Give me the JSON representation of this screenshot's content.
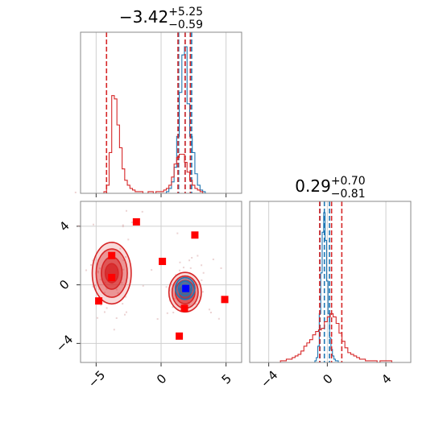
{
  "chart_data": [
    {
      "type": "histogram",
      "panel": "marginal-x",
      "title": {
        "value": "−3.42",
        "plus": "+5.25",
        "minus": "−0.59"
      },
      "xlim": [
        -6.2,
        6.2
      ],
      "series": [
        {
          "name": "",
          "color": "#1f77b4",
          "bin_centers": [
            0.5,
            0.7,
            0.9,
            1.1,
            1.3,
            1.5,
            1.7,
            1.9,
            2.1,
            2.3,
            2.5,
            2.7,
            2.9,
            3.1,
            3.3
          ],
          "counts": [
            0.01,
            0.03,
            0.07,
            0.16,
            0.35,
            0.62,
            0.85,
            0.9,
            0.55,
            0.35,
            0.25,
            0.12,
            0.05,
            0.02,
            0.01
          ],
          "quantile_lines": [
            1.35,
            1.85,
            2.35
          ]
        },
        {
          "name": "",
          "color": "#d62728",
          "bin_centers": [
            -4.3,
            -4.1,
            -3.9,
            -3.7,
            -3.5,
            -3.3,
            -3.1,
            -2.9,
            -2.7,
            -2.5,
            -2.3,
            -2.1,
            -1.9,
            -1.7,
            -1.5,
            -1.3,
            -1.1,
            -0.9,
            -0.7,
            -0.5,
            -0.3,
            -0.1,
            0.1,
            0.3,
            0.5,
            0.7,
            0.9,
            1.1,
            1.3,
            1.5,
            1.7,
            1.9,
            2.1,
            2.3,
            2.5,
            2.7,
            2.9,
            3.1
          ],
          "counts": [
            0.01,
            0.05,
            0.25,
            0.6,
            0.58,
            0.42,
            0.28,
            0.15,
            0.08,
            0.05,
            0.03,
            0.02,
            0.01,
            0.01,
            0.01,
            0.0,
            0.0,
            0.01,
            0.01,
            0.0,
            0.01,
            0.01,
            0.01,
            0.02,
            0.03,
            0.05,
            0.1,
            0.18,
            0.22,
            0.24,
            0.24,
            0.19,
            0.13,
            0.08,
            0.05,
            0.03,
            0.02,
            0.01
          ],
          "quantile_lines": [
            -4.2,
            1.3,
            1.85,
            2.25
          ]
        }
      ]
    },
    {
      "type": "scatter",
      "panel": "joint",
      "xlim": [
        -6.2,
        6.2
      ],
      "ylim": [
        -5.3,
        5.7
      ],
      "x_ticks": [
        "−5",
        "0",
        "5"
      ],
      "y_ticks": [
        "−4",
        "0",
        "4"
      ],
      "red_markers": [
        [
          -1.9,
          4.3
        ],
        [
          2.6,
          3.4
        ],
        [
          -3.8,
          2.0
        ],
        [
          0.1,
          1.6
        ],
        [
          -3.8,
          0.5
        ],
        [
          -4.8,
          -1.1
        ],
        [
          4.9,
          -1.0
        ],
        [
          1.8,
          -1.6
        ],
        [
          1.4,
          -3.5
        ]
      ],
      "blue_markers": [
        [
          1.9,
          -0.25
        ]
      ],
      "contour_groups": [
        {
          "color": "#d62728",
          "center": [
            -3.8,
            0.8
          ],
          "levels": [
            [
              1.5,
              2.1
            ],
            [
              1.2,
              1.65
            ],
            [
              0.8,
              1.1
            ],
            [
              0.5,
              0.65
            ]
          ]
        },
        {
          "color": "#d62728",
          "center": [
            1.85,
            -0.5
          ],
          "levels": [
            [
              1.25,
              1.35
            ],
            [
              1.0,
              1.1
            ],
            [
              0.75,
              0.8
            ],
            [
              0.45,
              0.45
            ]
          ]
        },
        {
          "color": "#1f77b4",
          "center": [
            1.85,
            -0.25
          ],
          "levels": [
            [
              0.75,
              0.75
            ],
            [
              0.5,
              0.5
            ],
            [
              0.25,
              0.25
            ]
          ]
        }
      ]
    },
    {
      "type": "histogram",
      "panel": "marginal-y",
      "title": {
        "value": "0.29",
        "plus": "+0.70",
        "minus": "−0.81"
      },
      "xlim": [
        -5.3,
        5.7
      ],
      "x_ticks": [
        "−4",
        "0",
        "4"
      ],
      "series": [
        {
          "name": "",
          "color": "#1f77b4",
          "bin_centers": [
            -0.8,
            -0.7,
            -0.6,
            -0.5,
            -0.4,
            -0.3,
            -0.2,
            -0.1,
            0.0,
            0.1,
            0.2,
            0.3,
            0.4,
            0.5,
            0.6,
            0.7
          ],
          "counts": [
            0.01,
            0.03,
            0.1,
            0.3,
            0.55,
            0.8,
            0.92,
            0.75,
            0.5,
            0.3,
            0.15,
            0.08,
            0.04,
            0.02,
            0.01,
            0.01
          ],
          "quantile_lines": [
            -0.5,
            -0.2,
            0.15
          ]
        },
        {
          "name": "",
          "color": "#d62728",
          "bin_centers": [
            -3.1,
            -2.9,
            -2.7,
            -2.5,
            -2.3,
            -2.1,
            -1.9,
            -1.7,
            -1.5,
            -1.3,
            -1.1,
            -0.9,
            -0.7,
            -0.5,
            -0.3,
            -0.1,
            0.1,
            0.3,
            0.5,
            0.7,
            0.9,
            1.1,
            1.3,
            1.5,
            1.7,
            1.9,
            2.1,
            2.3,
            2.5,
            2.7,
            2.9,
            3.1,
            3.3,
            3.5,
            3.7,
            3.9,
            4.1,
            4.3
          ],
          "counts": [
            0.01,
            0.01,
            0.02,
            0.02,
            0.03,
            0.04,
            0.05,
            0.07,
            0.1,
            0.12,
            0.14,
            0.17,
            0.19,
            0.2,
            0.21,
            0.25,
            0.28,
            0.3,
            0.28,
            0.24,
            0.18,
            0.13,
            0.09,
            0.06,
            0.05,
            0.04,
            0.03,
            0.02,
            0.02,
            0.01,
            0.01,
            0.01,
            0.01,
            0.0,
            0.01,
            0.01,
            0.01,
            0.01
          ],
          "quantile_lines": [
            -0.52,
            0.29,
            0.99
          ]
        }
      ]
    }
  ]
}
